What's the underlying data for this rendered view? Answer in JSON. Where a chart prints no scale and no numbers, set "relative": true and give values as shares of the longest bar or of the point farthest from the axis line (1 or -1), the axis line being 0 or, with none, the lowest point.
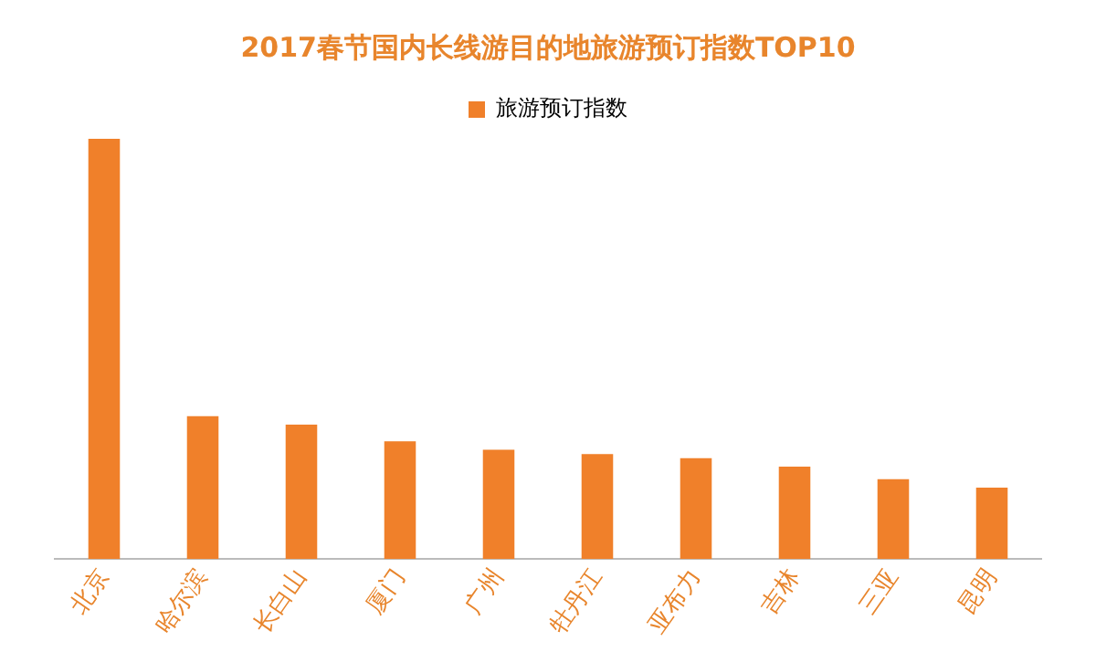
{
  "chart_data": {
    "type": "bar",
    "title": "2017春节国内长线游目的地旅游预订指数TOP10",
    "categories": [
      "北京",
      "哈尔滨",
      "长白山",
      "厦门",
      "广州",
      "牡丹江",
      "亚布力",
      "吉林",
      "三亚",
      "昆明"
    ],
    "series": [
      {
        "name": "旅游预订指数",
        "color": "#f0802a",
        "values": [
          1,
          0.34,
          0.32,
          0.28,
          0.26,
          0.25,
          0.24,
          0.22,
          0.19,
          0.17
        ]
      }
    ],
    "relative": true,
    "legend": "top",
    "grid": false
  }
}
